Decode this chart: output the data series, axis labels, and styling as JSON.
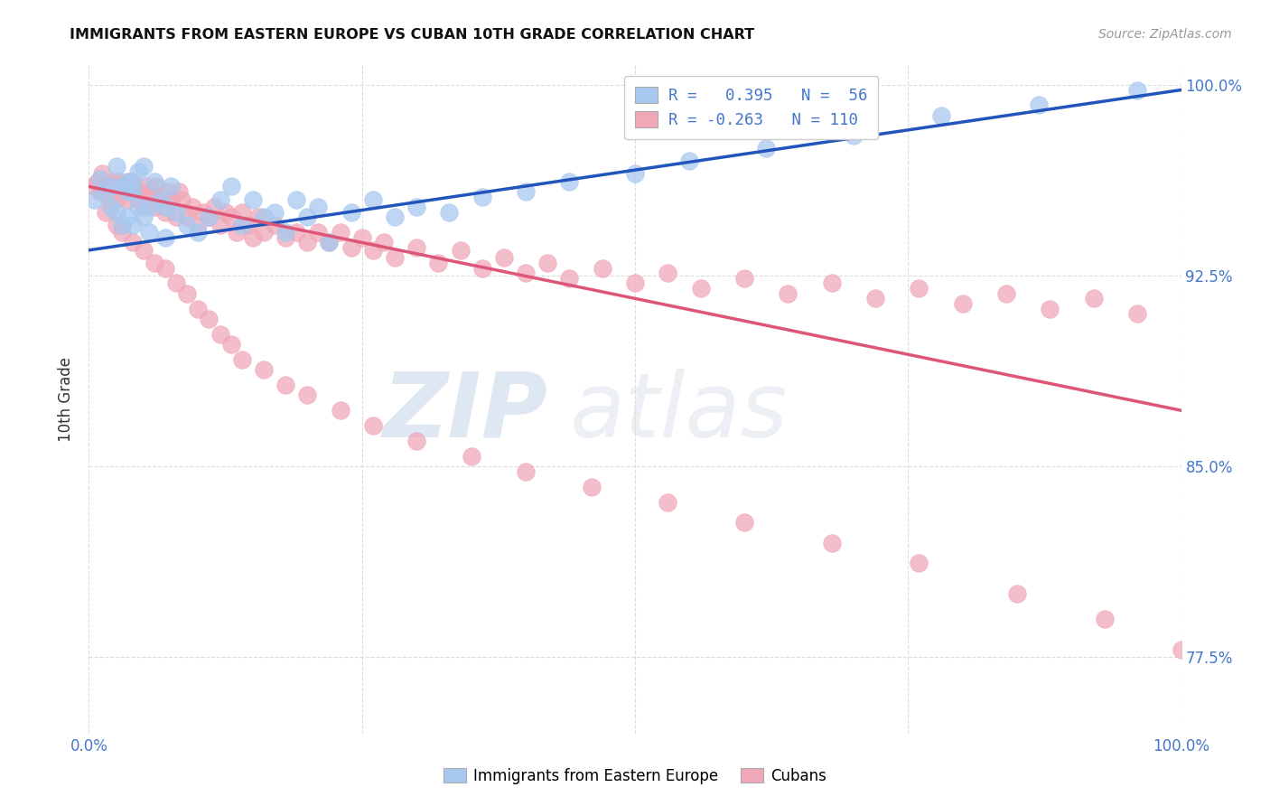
{
  "title": "IMMIGRANTS FROM EASTERN EUROPE VS CUBAN 10TH GRADE CORRELATION CHART",
  "source": "Source: ZipAtlas.com",
  "ylabel": "10th Grade",
  "xlim": [
    0.0,
    1.0
  ],
  "ylim": [
    0.745,
    1.008
  ],
  "watermark_zip": "ZIP",
  "watermark_atlas": "atlas",
  "legend_line1": "R =   0.395   N =  56",
  "legend_line2": "R = -0.263   N = 110",
  "legend_blue_label": "Immigrants from Eastern Europe",
  "legend_pink_label": "Cubans",
  "blue_color": "#A8C8F0",
  "pink_color": "#F0A8B8",
  "line_blue_color": "#2255BB",
  "line_pink_color": "#DD5577",
  "blue_line_x0": 0.0,
  "blue_line_x1": 1.0,
  "blue_line_y0": 0.935,
  "blue_line_y1": 0.998,
  "pink_line_x0": 0.0,
  "pink_line_x1": 1.0,
  "pink_line_y0": 0.96,
  "pink_line_y1": 0.872,
  "background_color": "#FFFFFF",
  "grid_color": "#DDDDDD",
  "title_color": "#111111",
  "tick_label_color": "#4477CC",
  "blue_scatter_x": [
    0.005,
    0.01,
    0.015,
    0.02,
    0.02,
    0.025,
    0.025,
    0.03,
    0.03,
    0.035,
    0.035,
    0.035,
    0.04,
    0.04,
    0.04,
    0.045,
    0.045,
    0.05,
    0.05,
    0.055,
    0.055,
    0.06,
    0.065,
    0.07,
    0.07,
    0.075,
    0.08,
    0.09,
    0.1,
    0.11,
    0.12,
    0.13,
    0.14,
    0.15,
    0.16,
    0.17,
    0.18,
    0.19,
    0.2,
    0.21,
    0.22,
    0.24,
    0.26,
    0.28,
    0.3,
    0.33,
    0.36,
    0.4,
    0.44,
    0.5,
    0.55,
    0.62,
    0.7,
    0.78,
    0.87,
    0.96
  ],
  "blue_scatter_y": [
    0.955,
    0.963,
    0.958,
    0.952,
    0.96,
    0.95,
    0.968,
    0.945,
    0.96,
    0.948,
    0.962,
    0.958,
    0.945,
    0.958,
    0.962,
    0.952,
    0.966,
    0.948,
    0.968,
    0.942,
    0.952,
    0.962,
    0.955,
    0.952,
    0.94,
    0.96,
    0.95,
    0.945,
    0.942,
    0.948,
    0.955,
    0.96,
    0.945,
    0.955,
    0.948,
    0.95,
    0.942,
    0.955,
    0.948,
    0.952,
    0.938,
    0.95,
    0.955,
    0.948,
    0.952,
    0.95,
    0.956,
    0.958,
    0.962,
    0.965,
    0.97,
    0.975,
    0.98,
    0.988,
    0.992,
    0.998
  ],
  "pink_scatter_x": [
    0.005,
    0.008,
    0.01,
    0.012,
    0.015,
    0.018,
    0.02,
    0.022,
    0.025,
    0.028,
    0.03,
    0.032,
    0.035,
    0.038,
    0.04,
    0.042,
    0.045,
    0.048,
    0.05,
    0.052,
    0.055,
    0.058,
    0.06,
    0.062,
    0.065,
    0.07,
    0.072,
    0.075,
    0.08,
    0.082,
    0.085,
    0.09,
    0.095,
    0.1,
    0.105,
    0.11,
    0.115,
    0.12,
    0.125,
    0.13,
    0.135,
    0.14,
    0.145,
    0.15,
    0.155,
    0.16,
    0.17,
    0.18,
    0.19,
    0.2,
    0.21,
    0.22,
    0.23,
    0.24,
    0.25,
    0.26,
    0.27,
    0.28,
    0.3,
    0.32,
    0.34,
    0.36,
    0.38,
    0.4,
    0.42,
    0.44,
    0.47,
    0.5,
    0.53,
    0.56,
    0.6,
    0.64,
    0.68,
    0.72,
    0.76,
    0.8,
    0.84,
    0.88,
    0.92,
    0.96,
    0.015,
    0.025,
    0.03,
    0.04,
    0.05,
    0.06,
    0.07,
    0.08,
    0.09,
    0.1,
    0.11,
    0.12,
    0.13,
    0.14,
    0.16,
    0.18,
    0.2,
    0.23,
    0.26,
    0.3,
    0.35,
    0.4,
    0.46,
    0.53,
    0.6,
    0.68,
    0.76,
    0.85,
    0.93,
    1.0
  ],
  "pink_scatter_y": [
    0.96,
    0.962,
    0.958,
    0.965,
    0.96,
    0.956,
    0.96,
    0.962,
    0.955,
    0.962,
    0.958,
    0.96,
    0.955,
    0.962,
    0.958,
    0.96,
    0.955,
    0.958,
    0.952,
    0.96,
    0.956,
    0.958,
    0.952,
    0.96,
    0.955,
    0.95,
    0.958,
    0.955,
    0.948,
    0.958,
    0.955,
    0.948,
    0.952,
    0.945,
    0.95,
    0.948,
    0.952,
    0.945,
    0.95,
    0.948,
    0.942,
    0.95,
    0.945,
    0.94,
    0.948,
    0.942,
    0.945,
    0.94,
    0.942,
    0.938,
    0.942,
    0.938,
    0.942,
    0.936,
    0.94,
    0.935,
    0.938,
    0.932,
    0.936,
    0.93,
    0.935,
    0.928,
    0.932,
    0.926,
    0.93,
    0.924,
    0.928,
    0.922,
    0.926,
    0.92,
    0.924,
    0.918,
    0.922,
    0.916,
    0.92,
    0.914,
    0.918,
    0.912,
    0.916,
    0.91,
    0.95,
    0.945,
    0.942,
    0.938,
    0.935,
    0.93,
    0.928,
    0.922,
    0.918,
    0.912,
    0.908,
    0.902,
    0.898,
    0.892,
    0.888,
    0.882,
    0.878,
    0.872,
    0.866,
    0.86,
    0.854,
    0.848,
    0.842,
    0.836,
    0.828,
    0.82,
    0.812,
    0.8,
    0.79,
    0.778
  ]
}
